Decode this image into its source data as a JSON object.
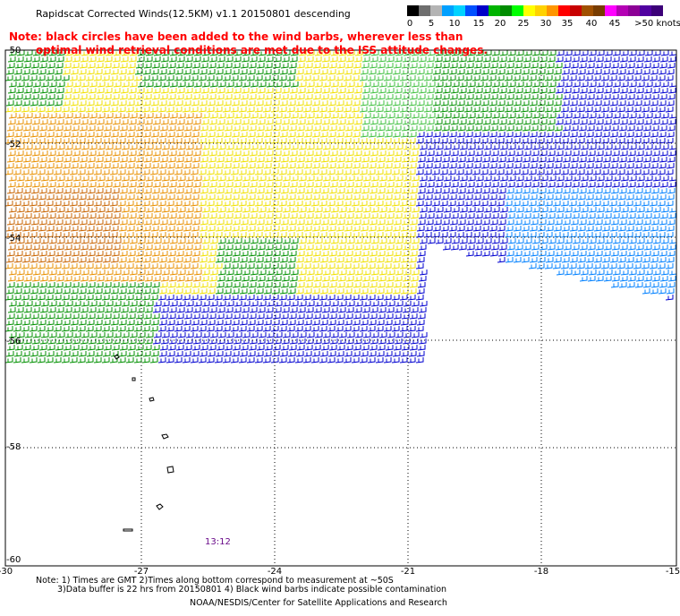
{
  "title": "Rapidscat Corrected Winds(12.5KM) v1.1 20150801 descending",
  "note": {
    "line1": "Note: black circles have been added to the wind barbs, wherever less than",
    "line2": "optimal wind retrieval conditions are met due to the ISS attitude changes."
  },
  "legend": {
    "colors": [
      "#000000",
      "#6e6e6e",
      "#b4b4b4",
      "#00a0ff",
      "#00d2ff",
      "#0050ff",
      "#0000c8",
      "#00b400",
      "#008c00",
      "#00ff00",
      "#ffff00",
      "#ffd200",
      "#ff9600",
      "#ff0000",
      "#c80000",
      "#a05000",
      "#783c00",
      "#ff00ff",
      "#b400b4",
      "#8c0096",
      "#5000a0",
      "#3c0078"
    ],
    "labels": [
      "0",
      "5",
      "10",
      "15",
      "20",
      "25",
      "30",
      "35",
      "40",
      "45",
      ">50 knots"
    ]
  },
  "axes": {
    "x_ticks": [
      "-30",
      "-27",
      "-24",
      "-21",
      "-18",
      "-15"
    ],
    "y_ticks": [
      "-50",
      "-52",
      "-54",
      "-56",
      "-58",
      "-60"
    ]
  },
  "time_label": "13:12",
  "footer": {
    "line1": "Note: 1) Times are GMT 2)Times along bottom correspond to measurement at ~50S",
    "line2": "3)Data buffer is 22 hrs from 20150801 4) Black wind barbs indicate possible contamination"
  },
  "credit": "NOAA/NESDIS/Center for Satellite Applications and Research",
  "colors": {
    "blue": "#0000d0",
    "lightblue": "#0080ff",
    "green": "#009000",
    "lightgreen": "#40c040",
    "yellow": "#f0e000",
    "orange": "#e89000",
    "darkorange": "#c86400"
  }
}
